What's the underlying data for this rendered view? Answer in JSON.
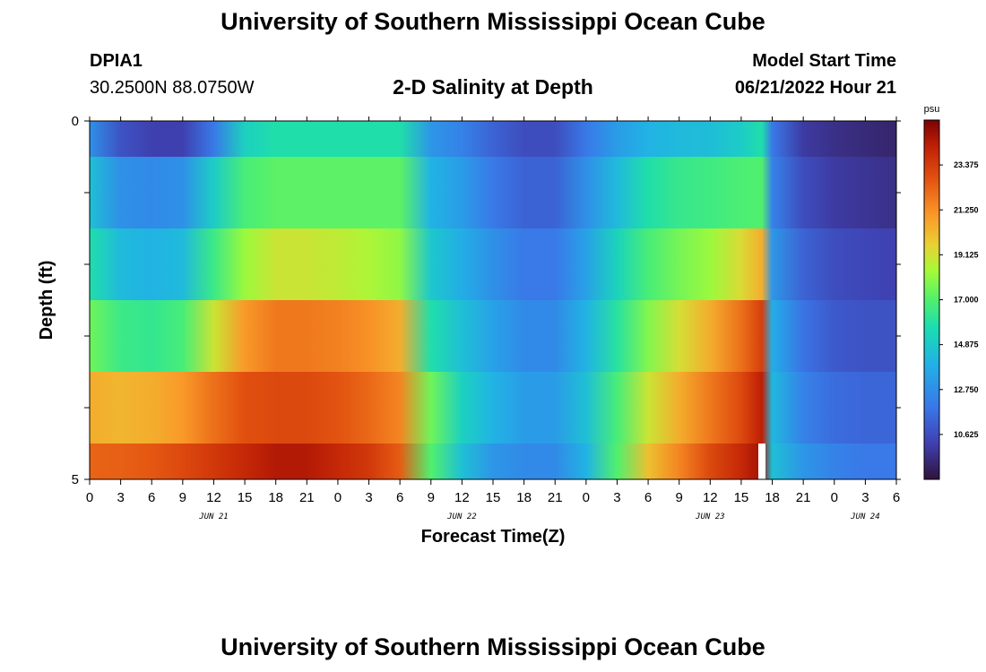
{
  "page": {
    "title": "University of Southern Mississippi Ocean Cube",
    "footer_title": "University of Southern Mississippi Ocean Cube",
    "station_id": "DPIA1",
    "station_coords": "30.2500N  88.0750W",
    "model_start_label": "Model Start Time",
    "model_start_value": "06/21/2022 Hour 21"
  },
  "chart_data": {
    "type": "heatmap",
    "title": "2-D Salinity at Depth",
    "xlabel": "Forecast Time(Z)",
    "ylabel": "Depth (ft)",
    "y_tick_labels": [
      "0",
      "5"
    ],
    "ylim": [
      0,
      5
    ],
    "x_tick_labels": [
      "0",
      "3",
      "6",
      "9",
      "12",
      "15",
      "18",
      "21",
      "0",
      "3",
      "6",
      "9",
      "12",
      "15",
      "18",
      "21",
      "0",
      "3",
      "6",
      "9",
      "12",
      "15",
      "18",
      "21",
      "0",
      "3",
      "6"
    ],
    "date_labels": [
      "JUN 21",
      "JUN 22",
      "JUN 23",
      "JUN 24"
    ],
    "date_label_hours": [
      12,
      36,
      60,
      75
    ],
    "x_hours_range": [
      0,
      78
    ],
    "colorbar": {
      "unit": "psu",
      "range": [
        8.5,
        25.5
      ],
      "labels": [
        "23.375",
        "21.250",
        "19.125",
        "17.000",
        "14.875",
        "12.750",
        "10.625"
      ],
      "label_values": [
        23.375,
        21.25,
        19.125,
        17.0,
        14.875,
        12.75,
        10.625
      ]
    },
    "layers": [
      {
        "depth_range": [
          0.0,
          0.5
        ],
        "hours": [
          0,
          3,
          6,
          9,
          12,
          15,
          18,
          21,
          24,
          27,
          30,
          33,
          36,
          39,
          42,
          45,
          48,
          51,
          54,
          57,
          60,
          63,
          65,
          66,
          69,
          72,
          75,
          78
        ],
        "values": [
          12.8,
          10.8,
          10.2,
          10.2,
          12.0,
          15.2,
          15.8,
          15.8,
          15.8,
          15.8,
          15.8,
          13.0,
          12.3,
          11.3,
          10.6,
          10.6,
          12.0,
          13.2,
          14.0,
          14.3,
          14.4,
          15.0,
          15.8,
          12.0,
          10.0,
          9.6,
          9.4,
          9.2
        ]
      },
      {
        "depth_range": [
          0.5,
          1.5
        ],
        "hours": [
          0,
          3,
          6,
          9,
          12,
          15,
          18,
          21,
          24,
          27,
          30,
          33,
          36,
          39,
          42,
          45,
          48,
          51,
          54,
          57,
          60,
          63,
          65,
          66,
          69,
          72,
          75,
          78
        ],
        "values": [
          14.5,
          12.8,
          12.6,
          12.8,
          15.0,
          16.8,
          17.2,
          17.2,
          17.2,
          17.2,
          17.2,
          14.0,
          13.2,
          12.0,
          11.3,
          11.3,
          12.8,
          14.3,
          15.8,
          16.4,
          16.6,
          16.9,
          17.0,
          12.3,
          10.6,
          10.0,
          9.8,
          9.6
        ]
      },
      {
        "depth_range": [
          1.5,
          2.5
        ],
        "hours": [
          0,
          3,
          6,
          9,
          12,
          15,
          18,
          21,
          24,
          27,
          30,
          33,
          36,
          39,
          42,
          45,
          48,
          51,
          54,
          57,
          60,
          63,
          65,
          66,
          69,
          72,
          75,
          78
        ],
        "values": [
          15.8,
          14.3,
          14.0,
          14.3,
          16.5,
          18.2,
          19.0,
          19.0,
          18.8,
          18.5,
          18.0,
          14.8,
          13.8,
          12.8,
          12.0,
          12.0,
          13.4,
          15.3,
          16.8,
          17.6,
          18.2,
          19.3,
          20.5,
          13.0,
          11.3,
          10.6,
          10.4,
          10.2
        ]
      },
      {
        "depth_range": [
          2.5,
          3.5
        ],
        "hours": [
          0,
          3,
          6,
          9,
          12,
          15,
          18,
          21,
          24,
          27,
          30,
          33,
          36,
          39,
          42,
          45,
          48,
          51,
          54,
          57,
          60,
          63,
          65,
          66,
          69,
          72,
          75,
          78
        ],
        "values": [
          17.5,
          16.5,
          16.3,
          16.8,
          19.0,
          21.0,
          21.8,
          21.8,
          21.6,
          21.2,
          20.5,
          15.8,
          14.5,
          13.4,
          12.6,
          12.6,
          14.0,
          16.0,
          17.8,
          19.2,
          20.5,
          22.0,
          23.3,
          13.8,
          11.8,
          11.0,
          10.8,
          10.8
        ]
      },
      {
        "depth_range": [
          3.5,
          4.5
        ],
        "hours": [
          0,
          3,
          6,
          9,
          12,
          15,
          18,
          21,
          24,
          27,
          30,
          33,
          36,
          39,
          42,
          45,
          48,
          51,
          54,
          57,
          60,
          63,
          65,
          66,
          69,
          72,
          75,
          78
        ],
        "values": [
          20.5,
          20.3,
          20.5,
          21.0,
          22.0,
          22.8,
          23.0,
          23.0,
          22.7,
          22.2,
          21.5,
          17.5,
          15.2,
          14.0,
          13.2,
          13.2,
          14.5,
          16.8,
          19.0,
          20.5,
          21.8,
          23.0,
          24.3,
          14.2,
          12.3,
          11.6,
          11.4,
          11.4
        ]
      },
      {
        "depth_range": [
          4.5,
          5.0
        ],
        "hours": [
          0,
          3,
          6,
          9,
          12,
          15,
          18,
          21,
          24,
          27,
          30,
          33,
          36,
          39,
          42,
          45,
          48,
          51,
          54,
          57,
          60,
          63,
          65,
          66,
          69,
          72,
          75,
          78
        ],
        "values": [
          22.3,
          22.4,
          22.6,
          23.0,
          23.5,
          24.0,
          24.5,
          24.5,
          24.0,
          23.5,
          22.5,
          17.0,
          14.5,
          13.0,
          12.6,
          12.6,
          14.0,
          17.0,
          20.0,
          21.5,
          23.0,
          24.0,
          24.8,
          14.5,
          13.0,
          12.3,
          12.0,
          12.0
        ]
      }
    ],
    "white_marker_hour": 65.0,
    "white_marker_depth_range": [
      4.5,
      5.0
    ]
  }
}
